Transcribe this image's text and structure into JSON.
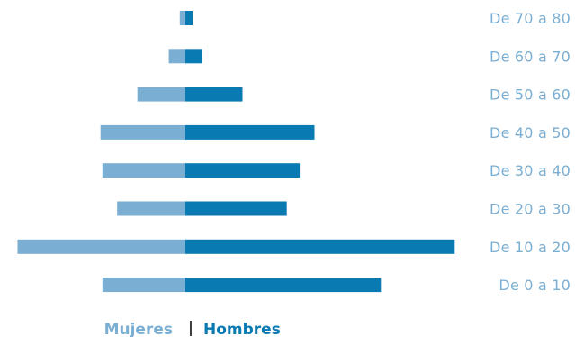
{
  "chart_data": {
    "type": "bar",
    "orientation": "horizontal-diverging",
    "title": "",
    "xlabel": "",
    "ylabel": "",
    "categories": [
      "De 70 a 80",
      "De 60 a 70",
      "De 50 a 60",
      "De 40 a 50",
      "De 30 a 40",
      "De 20 a 30",
      "De 10 a 20",
      "De 0 a 10"
    ],
    "series": [
      {
        "name": "Mujeres",
        "color": "#7aaed2",
        "values": [
          3,
          9,
          26,
          46,
          45,
          37,
          91,
          45
        ]
      },
      {
        "name": "Hombres",
        "color": "#0a7ab2",
        "values": [
          4,
          9,
          31,
          70,
          62,
          55,
          146,
          106
        ]
      }
    ],
    "xlim": [
      -100,
      150
    ],
    "grid": false,
    "legend": {
      "placement": "bottom-center",
      "separator": "|"
    },
    "label_color": "#7aaed2"
  }
}
